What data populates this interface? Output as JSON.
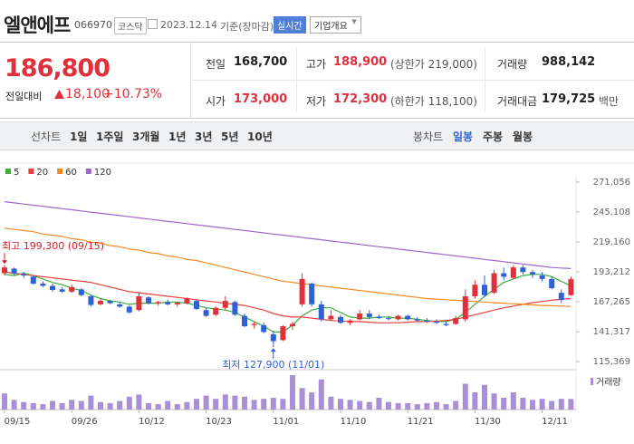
{
  "header": {
    "name": "엘앤에프",
    "code": "066970",
    "market": "코스닥",
    "date": "2023.12.14",
    "basis": "기준(장마감)",
    "realtime": "실시간",
    "overview": "기업개요"
  },
  "quote": {
    "price": "186,800",
    "change_label": "전일대비",
    "change": "18,100",
    "change_pct": "+10.73%",
    "color": "#e0303c",
    "items": [
      {
        "label": "전일",
        "value": "168,700"
      },
      {
        "label": "고가",
        "value": "188,900",
        "extra": "(상한가 219,000)",
        "color": "#e0303c"
      },
      {
        "label": "거래량",
        "value": "988,142"
      },
      {
        "label": "시가",
        "value": "173,000",
        "color": "#e0303c"
      },
      {
        "label": "저가",
        "value": "172,300",
        "extra": "(하한가 118,100)",
        "color": "#e0303c"
      },
      {
        "label": "거래대금",
        "value": "179,725",
        "extra": "백만"
      }
    ]
  },
  "chart_tabs": {
    "line_label": "선차트",
    "line": [
      "1일",
      "1주일",
      "3개월",
      "1년",
      "3년",
      "5년",
      "10년"
    ],
    "candle_label": "봉차트",
    "candle": [
      "일봉",
      "주봉",
      "월봉"
    ],
    "active_candle": 0
  },
  "chart_data": {
    "type": "candlestick",
    "categories": [
      "09/15",
      null,
      null,
      null,
      null,
      null,
      null,
      "09/26",
      null,
      null,
      null,
      null,
      null,
      null,
      "10/12",
      null,
      null,
      null,
      null,
      null,
      null,
      "10/23",
      null,
      null,
      null,
      null,
      null,
      null,
      "11/01",
      null,
      null,
      null,
      null,
      null,
      null,
      "11/10",
      null,
      null,
      null,
      null,
      null,
      null,
      "11/21",
      null,
      null,
      null,
      null,
      null,
      null,
      "11/30",
      null,
      null,
      null,
      null,
      null,
      null,
      "12/11",
      null,
      null,
      null
    ],
    "candles": [
      [
        192000,
        199300,
        190000,
        197000
      ],
      [
        196000,
        197000,
        190000,
        191500
      ],
      [
        191000,
        193000,
        188000,
        190000
      ],
      [
        189000,
        190000,
        182000,
        183000
      ],
      [
        183000,
        185000,
        180000,
        181000
      ],
      [
        181000,
        183000,
        176000,
        177500
      ],
      [
        178000,
        180000,
        175000,
        176000
      ],
      [
        176000,
        182000,
        175000,
        180000
      ],
      [
        178000,
        179000,
        172000,
        173000
      ],
      [
        172000,
        173000,
        163000,
        164500
      ],
      [
        165000,
        170000,
        164000,
        168000
      ],
      [
        168000,
        169000,
        165000,
        166000
      ],
      [
        165000,
        167000,
        162000,
        163000
      ],
      [
        163000,
        164000,
        157000,
        158000
      ],
      [
        160000,
        175000,
        159000,
        172000
      ],
      [
        171000,
        172000,
        165000,
        166000
      ],
      [
        166000,
        168000,
        164000,
        167000
      ],
      [
        167000,
        169000,
        164000,
        165000
      ],
      [
        165000,
        167000,
        163000,
        166500
      ],
      [
        166000,
        171000,
        165000,
        170000
      ],
      [
        168000,
        169000,
        160000,
        161000
      ],
      [
        160000,
        162000,
        154000,
        155000
      ],
      [
        156000,
        163000,
        155000,
        162000
      ],
      [
        162000,
        172000,
        160000,
        168000
      ],
      [
        167000,
        168000,
        155000,
        156000
      ],
      [
        155000,
        157000,
        145000,
        146000
      ],
      [
        147000,
        150000,
        144000,
        148000
      ],
      [
        147000,
        149000,
        140000,
        141000
      ],
      [
        139000,
        142000,
        127900,
        133000
      ],
      [
        134000,
        147000,
        133000,
        146000
      ],
      [
        146000,
        150000,
        143000,
        148000
      ],
      [
        165000,
        192000,
        163000,
        187000
      ],
      [
        183000,
        184000,
        163000,
        165000
      ],
      [
        165000,
        168000,
        150000,
        152000
      ],
      [
        152000,
        160000,
        151000,
        155000
      ],
      [
        154000,
        156000,
        148000,
        149000
      ],
      [
        149000,
        152000,
        147000,
        151000
      ],
      [
        152000,
        160000,
        151000,
        157000
      ],
      [
        157000,
        160000,
        152000,
        154000
      ],
      [
        154000,
        156000,
        152000,
        153000
      ],
      [
        153000,
        155000,
        151000,
        152500
      ],
      [
        152000,
        156000,
        151000,
        155000
      ],
      [
        155000,
        156000,
        151000,
        152000
      ],
      [
        152000,
        154000,
        150000,
        151000
      ],
      [
        151000,
        153000,
        149000,
        150000
      ],
      [
        150000,
        152000,
        148000,
        149000
      ],
      [
        148000,
        150000,
        146000,
        147000
      ],
      [
        148000,
        155000,
        147000,
        153000
      ],
      [
        152000,
        178000,
        150000,
        172000
      ],
      [
        172000,
        186000,
        170000,
        182000
      ],
      [
        182000,
        190000,
        171000,
        173000
      ],
      [
        175000,
        195000,
        174000,
        192000
      ],
      [
        192000,
        197000,
        186000,
        189000
      ],
      [
        188000,
        199000,
        187000,
        197000
      ],
      [
        197000,
        199000,
        191000,
        193000
      ],
      [
        193000,
        195000,
        188000,
        191000
      ],
      [
        190000,
        193000,
        185000,
        187000
      ],
      [
        187000,
        189000,
        178000,
        179000
      ],
      [
        175000,
        178000,
        166000,
        168700
      ],
      [
        173000,
        188900,
        172300,
        186800
      ]
    ],
    "up_color": "#e0303c",
    "down_color": "#2e62d4",
    "series": [
      {
        "name": "5",
        "color": "#3cae3c",
        "values": [
          191000,
          190000,
          192000,
          190000,
          187000,
          184000,
          182000,
          179000,
          177000,
          173000,
          170000,
          168000,
          167000,
          165000,
          166000,
          166000,
          166000,
          167000,
          167000,
          166000,
          164000,
          162000,
          161000,
          160000,
          158000,
          154000,
          150000,
          146000,
          141000,
          141000,
          147000,
          155000,
          160000,
          162000,
          162000,
          158000,
          154000,
          153000,
          153000,
          154000,
          154000,
          153000,
          153000,
          152000,
          151000,
          150000,
          150000,
          152000,
          158000,
          165000,
          172000,
          178000,
          184000,
          187000,
          190000,
          191000,
          191000,
          189000,
          185000,
          181000
        ]
      },
      {
        "name": "20",
        "color": "#e8413c",
        "values": [
          193000,
          192000,
          191000,
          190000,
          189000,
          188000,
          187000,
          186000,
          185000,
          184000,
          182000,
          180000,
          178000,
          176000,
          175000,
          174000,
          173000,
          172000,
          171000,
          170000,
          169000,
          168000,
          167000,
          166000,
          165000,
          164000,
          162000,
          160000,
          157000,
          155000,
          154000,
          154000,
          153000,
          152000,
          151000,
          150500,
          150000,
          150000,
          149500,
          149000,
          149000,
          149000,
          149500,
          150000,
          150000,
          150500,
          151000,
          152000,
          154000,
          156000,
          158000,
          160000,
          162000,
          163500,
          165000,
          166500,
          167500,
          168500,
          169500,
          170000
        ]
      },
      {
        "name": "60",
        "color": "#f08a24",
        "values": [
          231000,
          230000,
          229000,
          228000,
          226000,
          225000,
          224000,
          222000,
          221000,
          219000,
          218000,
          216000,
          215000,
          213000,
          212000,
          210000,
          209000,
          207000,
          206000,
          204000,
          203000,
          201000,
          199000,
          197000,
          195000,
          193000,
          191000,
          189000,
          187000,
          185000,
          184000,
          183000,
          182000,
          181000,
          180000,
          179000,
          178000,
          177000,
          176000,
          175000,
          174000,
          173000,
          172000,
          171000,
          170000,
          169500,
          169000,
          168500,
          168000,
          167500,
          167000,
          166500,
          166000,
          165500,
          165000,
          164500,
          164000,
          163800,
          163500,
          163200
        ]
      },
      {
        "name": "120",
        "color": "#a066cc",
        "values": [
          254000,
          253000,
          252000,
          251000,
          250000,
          249000,
          248000,
          247000,
          246000,
          245000,
          244000,
          243000,
          242000,
          241000,
          240000,
          239000,
          238000,
          237000,
          236000,
          235000,
          234000,
          233000,
          232000,
          231000,
          230000,
          229000,
          228000,
          227000,
          226000,
          225000,
          224000,
          223000,
          222000,
          221000,
          220000,
          219000,
          218000,
          217000,
          216000,
          215000,
          214000,
          213000,
          212000,
          211000,
          210000,
          209000,
          208000,
          207000,
          206000,
          205000,
          204000,
          203000,
          202000,
          201000,
          200000,
          199000,
          198000,
          197000,
          196500,
          196000
        ]
      }
    ],
    "volume_label": "거래량",
    "volume_color": "#a88fd6",
    "volume": [
      1500000,
      900000,
      700000,
      600000,
      500000,
      800000,
      600000,
      900000,
      800000,
      1300000,
      700000,
      600000,
      800000,
      1200000,
      1400000,
      600000,
      500000,
      800000,
      500000,
      700000,
      1000000,
      1300000,
      1000000,
      1400000,
      1300000,
      1200000,
      900000,
      1000000,
      1100000,
      1000000,
      3200000,
      2000000,
      1600000,
      2800000,
      1200000,
      1000000,
      900000,
      800000,
      700000,
      1100000,
      700000,
      600000,
      600000,
      500000,
      600000,
      700000,
      500000,
      800000,
      2400000,
      1600000,
      2300000,
      1500000,
      1100000,
      1600000,
      1100000,
      900000,
      1000000,
      800000,
      1000000,
      988142
    ],
    "ylim": [
      108300,
      277300
    ],
    "yticks": [
      {
        "value": 271056,
        "label": "271,056"
      },
      {
        "value": 245108,
        "label": "245,108"
      },
      {
        "value": 219160,
        "label": "219,160"
      },
      {
        "value": 193212,
        "label": "193,212"
      },
      {
        "value": 167265,
        "label": "167,265"
      },
      {
        "value": 141317,
        "label": "141,317"
      },
      {
        "value": 115369,
        "label": "115,369"
      }
    ],
    "annotations": [
      {
        "text": "최고 199,300 (09/15)",
        "candle": 0,
        "kind": "high",
        "color": "#d0202c"
      },
      {
        "text": "최저 127,900 (11/01)",
        "candle": 28,
        "kind": "low",
        "color": "#2e62d4"
      }
    ]
  }
}
